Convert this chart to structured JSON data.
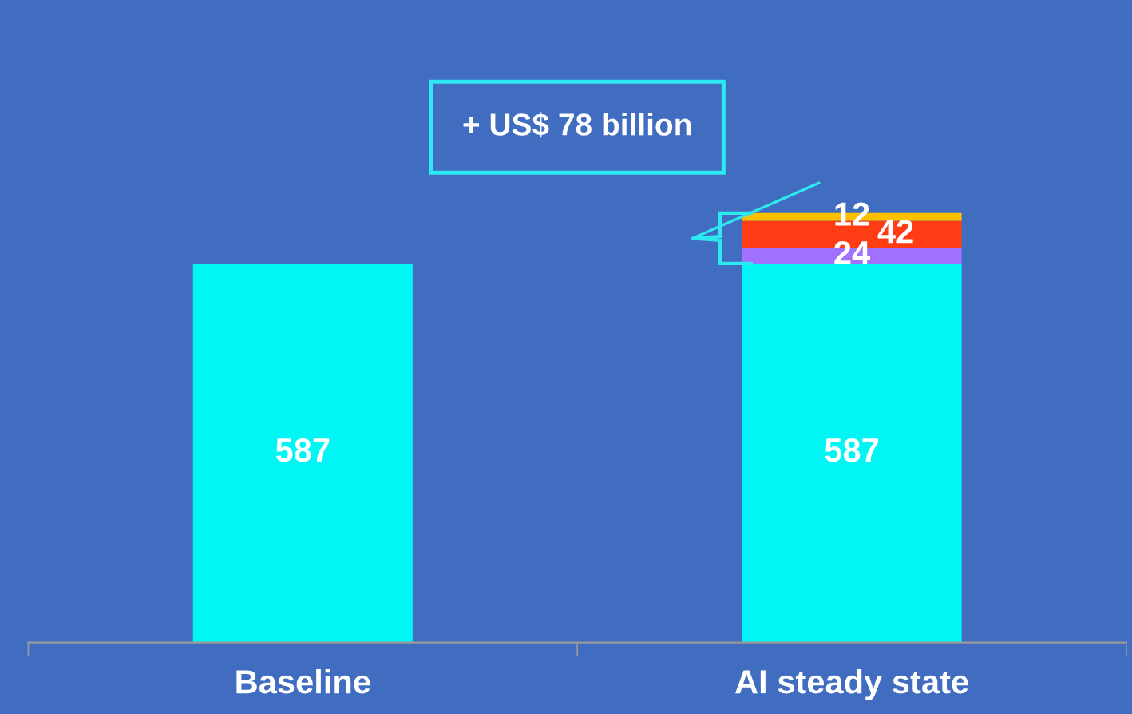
{
  "chart_data": {
    "type": "bar",
    "stacked": true,
    "categories": [
      "Baseline",
      "AI steady state"
    ],
    "series": [
      {
        "color": "#00f5f5",
        "values": [
          587,
          587
        ]
      },
      {
        "color": "#a070ff",
        "values": [
          null,
          24
        ]
      },
      {
        "color": "#ff3c14",
        "values": [
          null,
          42
        ]
      },
      {
        "color": "#ffc000",
        "values": [
          null,
          12
        ]
      }
    ],
    "data_labels": true,
    "grid": false,
    "legend": false,
    "annotations": [
      "+ US$ 78 billion"
    ]
  }
}
